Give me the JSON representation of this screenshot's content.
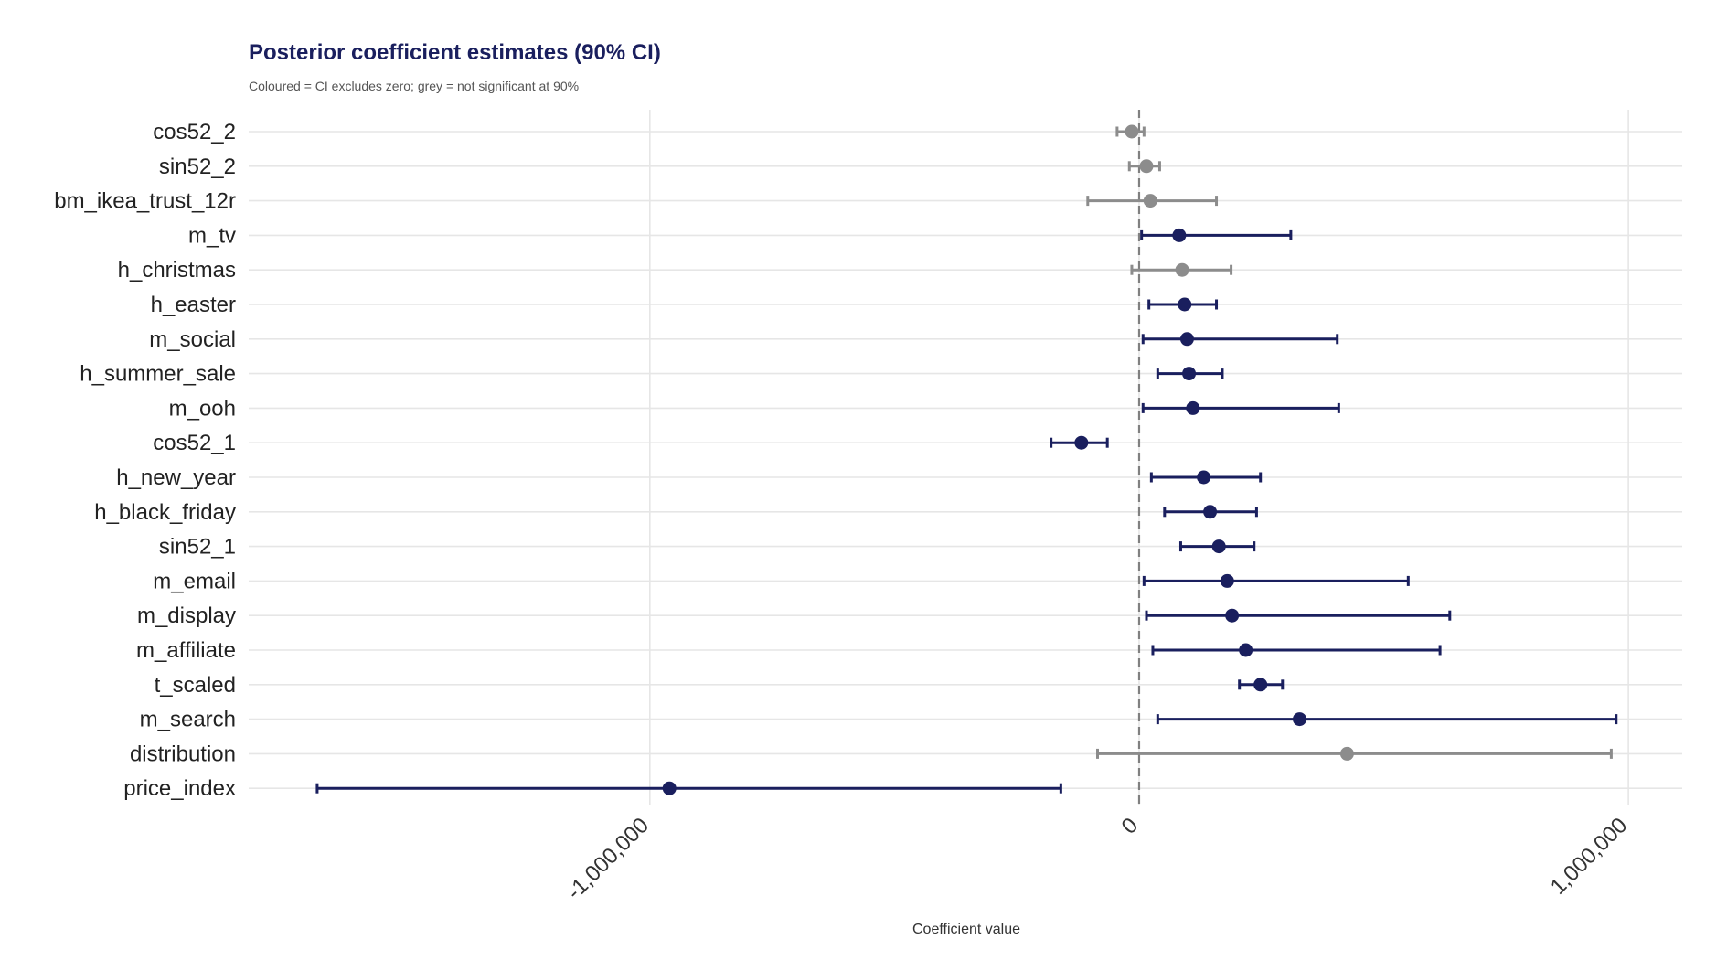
{
  "chart_data": {
    "type": "forest",
    "title": "Posterior coefficient estimates (90% CI)",
    "subtitle": "Coloured = CI excludes zero; grey = not significant at 90%",
    "xlabel": "Coefficient value",
    "ylabel": "",
    "xlim": [
      -1820000,
      1110000
    ],
    "xticks": [
      -1000000,
      0,
      1000000
    ],
    "xtick_labels": [
      "-1,000,000",
      "0",
      "1,000,000"
    ],
    "reference_line": 0,
    "grid": true,
    "colors": {
      "significant": "#1a1f5e",
      "not_significant": "#8c8c8c",
      "grid": "#e6e6e6",
      "zero_line": "#808080"
    },
    "series": [
      {
        "label": "cos52_2",
        "estimate": -15000,
        "lower": -45000,
        "upper": 10000,
        "significant": false
      },
      {
        "label": "sin52_2",
        "estimate": 15000,
        "lower": -20000,
        "upper": 42000,
        "significant": false
      },
      {
        "label": "bm_ikea_trust_12r",
        "estimate": 23000,
        "lower": -105000,
        "upper": 158000,
        "significant": false
      },
      {
        "label": "m_tv",
        "estimate": 82000,
        "lower": 5000,
        "upper": 310000,
        "significant": true
      },
      {
        "label": "h_christmas",
        "estimate": 88000,
        "lower": -15000,
        "upper": 188000,
        "significant": false
      },
      {
        "label": "h_easter",
        "estimate": 93000,
        "lower": 20000,
        "upper": 158000,
        "significant": true
      },
      {
        "label": "m_social",
        "estimate": 98000,
        "lower": 8000,
        "upper": 405000,
        "significant": true
      },
      {
        "label": "h_summer_sale",
        "estimate": 102000,
        "lower": 38000,
        "upper": 170000,
        "significant": true
      },
      {
        "label": "m_ooh",
        "estimate": 110000,
        "lower": 8000,
        "upper": 408000,
        "significant": true
      },
      {
        "label": "cos52_1",
        "estimate": -118000,
        "lower": -180000,
        "upper": -65000,
        "significant": true
      },
      {
        "label": "h_new_year",
        "estimate": 132000,
        "lower": 25000,
        "upper": 248000,
        "significant": true
      },
      {
        "label": "h_black_friday",
        "estimate": 145000,
        "lower": 52000,
        "upper": 240000,
        "significant": true
      },
      {
        "label": "sin52_1",
        "estimate": 163000,
        "lower": 85000,
        "upper": 235000,
        "significant": true
      },
      {
        "label": "m_email",
        "estimate": 180000,
        "lower": 10000,
        "upper": 550000,
        "significant": true
      },
      {
        "label": "m_display",
        "estimate": 190000,
        "lower": 15000,
        "upper": 635000,
        "significant": true
      },
      {
        "label": "m_affiliate",
        "estimate": 218000,
        "lower": 28000,
        "upper": 615000,
        "significant": true
      },
      {
        "label": "t_scaled",
        "estimate": 248000,
        "lower": 205000,
        "upper": 293000,
        "significant": true
      },
      {
        "label": "m_search",
        "estimate": 328000,
        "lower": 38000,
        "upper": 975000,
        "significant": true
      },
      {
        "label": "distribution",
        "estimate": 425000,
        "lower": -85000,
        "upper": 965000,
        "significant": false
      },
      {
        "label": "price_index",
        "estimate": -960000,
        "lower": -1680000,
        "upper": -160000,
        "significant": true
      }
    ]
  }
}
